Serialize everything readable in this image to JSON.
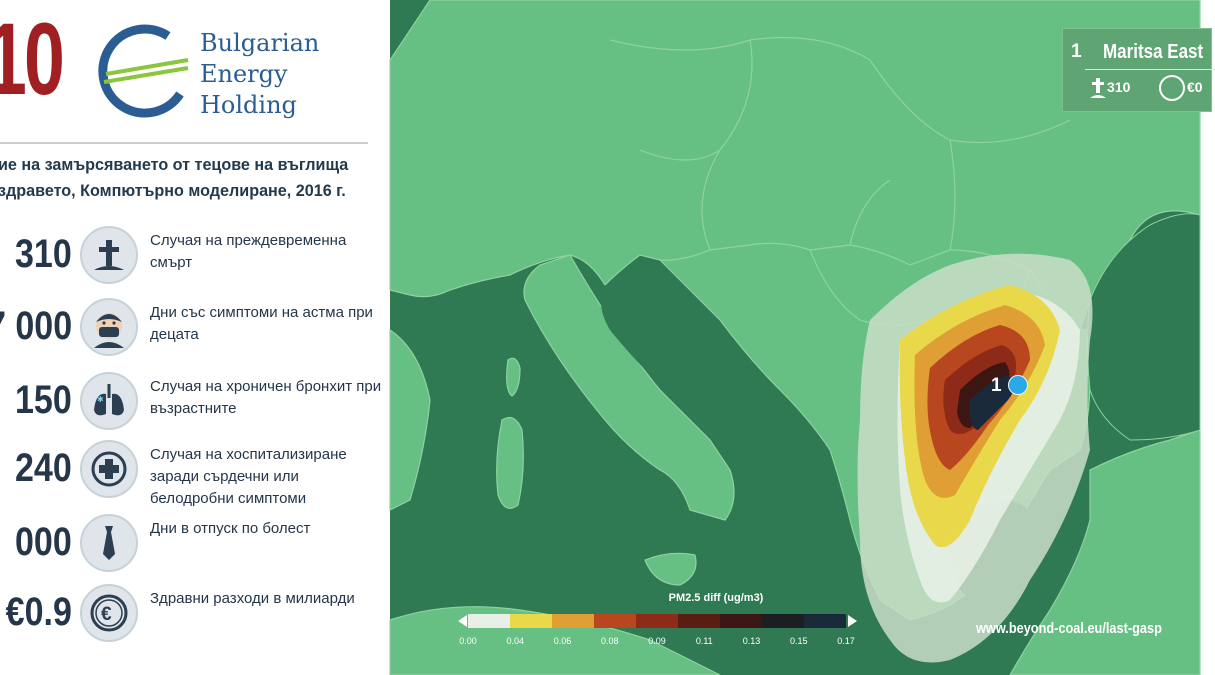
{
  "header": {
    "big_number": "10",
    "brand_line1": "Bulgarian",
    "brand_line2": "Energy",
    "brand_line3": "Holding",
    "subtitle_line1": "ие на замърсяването от тецове на въглища",
    "subtitle_line2": "здравето, Компютърно моделиране, 2016 г."
  },
  "stats": [
    {
      "value": "310",
      "text": "Случая на преждевременна смърт",
      "icon": "grave-cross-icon"
    },
    {
      "value": "7 000",
      "text": "Дни със симптоми на астма при децата",
      "icon": "child-mask-icon"
    },
    {
      "value": "150",
      "text": "Случая на хроничен бронхит при възрастните",
      "icon": "lungs-icon"
    },
    {
      "value": "240",
      "text": "Случая на хоспитализиране заради сърдечни или белодробни симптоми",
      "icon": "medical-cross-icon"
    },
    {
      "value": "000",
      "text": "Дни в отпуск по болест",
      "icon": "tie-icon"
    },
    {
      "value": "€0.9",
      "text": "Здравни разходи в милиарди",
      "icon": "euro-coin-icon"
    }
  ],
  "map": {
    "plant_number": "1",
    "plant_name": "Maritsa East",
    "plant_deaths": "310",
    "plant_cost": "€0",
    "marker_label": "1",
    "legend_title": "PM2.5 diff (ug/m3)",
    "legend_ticks": [
      "0.00",
      "0.04",
      "0.06",
      "0.08",
      "0.09",
      "0.11",
      "0.13",
      "0.15",
      "0.17"
    ],
    "legend_colors": [
      "#e8efe6",
      "#e8d84a",
      "#df9f35",
      "#b8461f",
      "#8e2a18",
      "#5a1d12",
      "#3b1612",
      "#1d1d24",
      "#1b2a3a"
    ],
    "website": "www.beyond-coal.eu/last-gasp",
    "colors": {
      "sea": "#2f7a53",
      "land": "#66bf83",
      "border": "#8ed3a1"
    }
  }
}
